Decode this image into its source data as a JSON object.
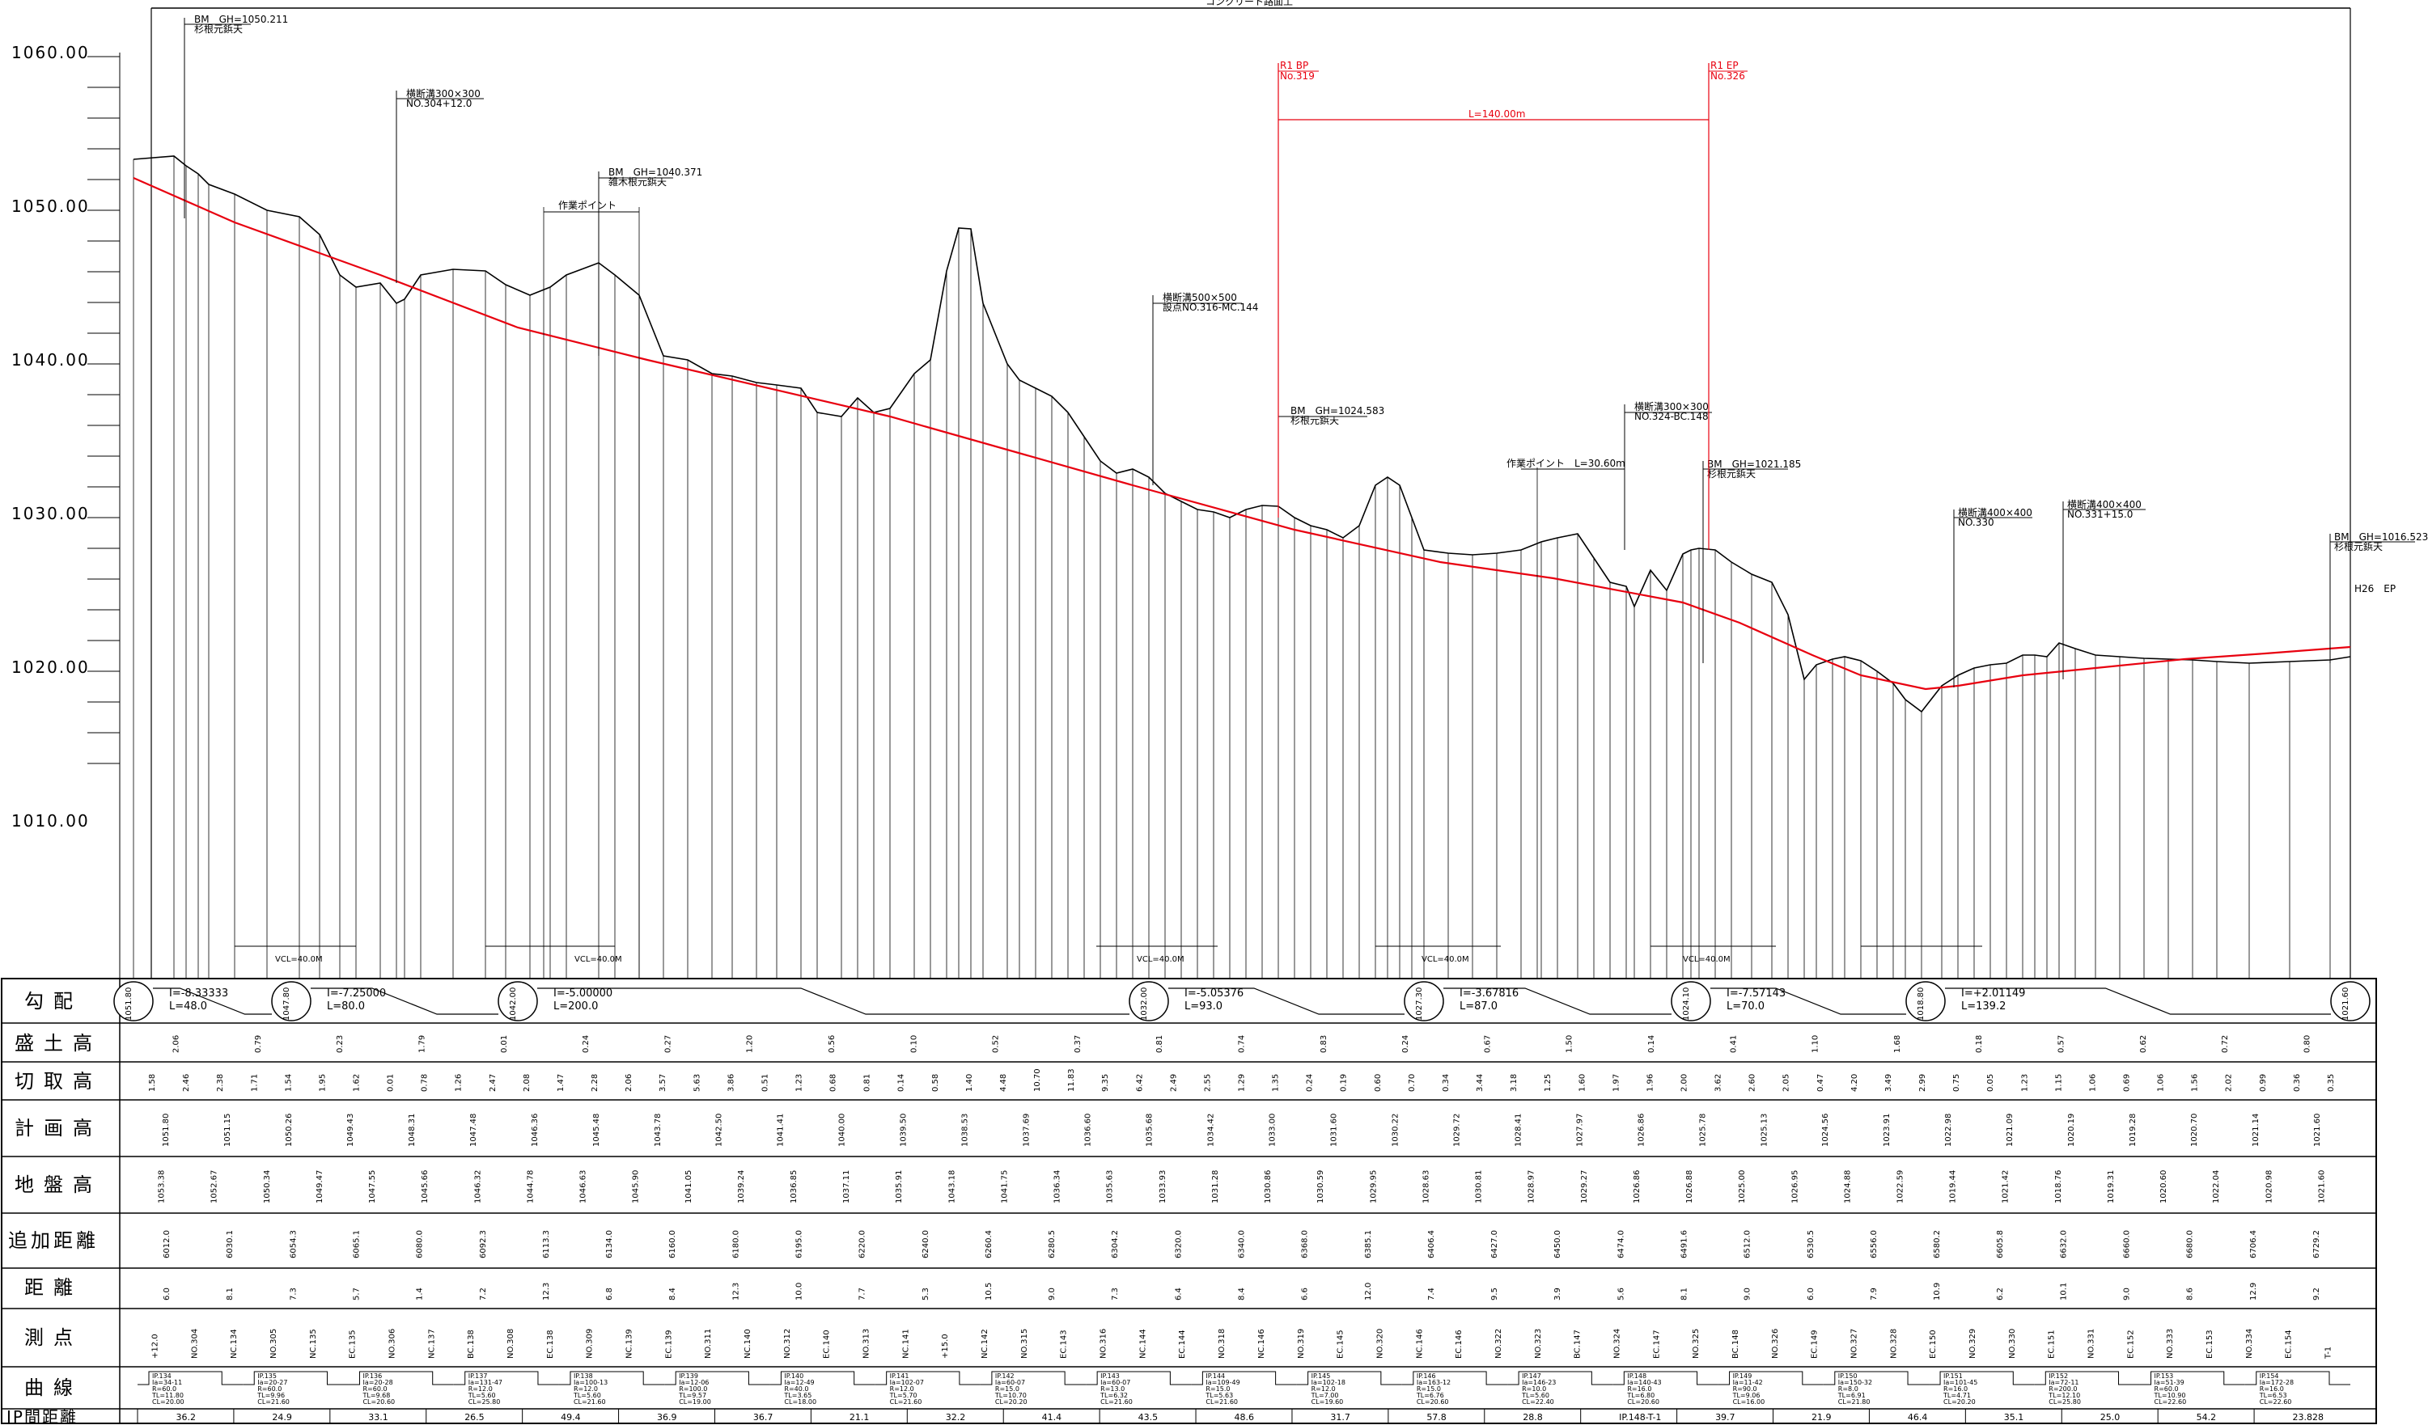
{
  "title_top": "コンクリート路面工",
  "elevations": [
    "1060.00",
    "1050.00",
    "1040.00",
    "1030.00",
    "1020.00",
    "1010.00"
  ],
  "row_labels": [
    "勾配",
    "盛土高",
    "切取高",
    "計画高",
    "地盤高",
    "追加距離",
    "距離",
    "測点",
    "曲線",
    "IP間距離"
  ],
  "annotations": [
    {
      "line1": "BM　GH=1050.211",
      "line2": "杉根元鋲天"
    },
    {
      "line1": "横断溝300×300",
      "line2": "NO.304+12.0"
    },
    {
      "line1": "BM　GH=1040.371",
      "line2": "雑木根元鋲天"
    },
    {
      "line1": "作業ポイント",
      "line2": ""
    },
    {
      "line1": "横断溝500×500",
      "line2": "設点NO.316-MC.144"
    },
    {
      "line1": "BM　GH=1024.583",
      "line2": "杉根元鋲天"
    },
    {
      "line1": "横断溝300×300",
      "line2": "NO.324-BC.148"
    },
    {
      "line1": "作業ポイント　L=30.60m",
      "line2": ""
    },
    {
      "line1": "BM　GH=1021.185",
      "line2": "杉根元鋲天"
    },
    {
      "line1": "横断溝400×400",
      "line2": "NO.330"
    },
    {
      "line1": "横断溝400×400",
      "line2": "NO.331+15.0"
    },
    {
      "line1": "BM　GH=1016.523",
      "line2": "杉根元鋲天"
    },
    {
      "line1": "H26　EP",
      "line2": ""
    }
  ],
  "red_annotations": [
    {
      "line1": "R1 BP",
      "line2": "No.319"
    },
    {
      "line1": "R1 EP",
      "line2": "No.326"
    },
    {
      "line1": "L=140.00m",
      "line2": ""
    }
  ],
  "vcl_labels": [
    "VCL=40.0M",
    "VCL=40.0M",
    "VCL=40.0M",
    "VCL=40.0M",
    "VCL=40.0M"
  ],
  "grades": [
    {
      "i": "I=-8.33333",
      "l": "L=48.0"
    },
    {
      "i": "I=-7.25000",
      "l": "L=80.0"
    },
    {
      "i": "I=-5.00000",
      "l": "L=200.0"
    },
    {
      "i": "I=-5.05376",
      "l": "L=93.0"
    },
    {
      "i": "I=-3.67816",
      "l": "L=87.0"
    },
    {
      "i": "I=-7.57143",
      "l": "L=70.0"
    },
    {
      "i": "I=+2.01149",
      "l": "L=139.2"
    }
  ],
  "grade_circles": [
    "1051.80",
    "1047.80",
    "1042.00",
    "1032.00",
    "1027.30",
    "1024.10",
    "1018.80",
    "1021.60"
  ],
  "fill_samples": [
    "2.06",
    "0.79",
    "0.23",
    "1.79",
    "0.01",
    "0.24",
    "0.27",
    "1.20",
    "0.56",
    "0.10",
    "0.52",
    "0.37",
    "0.81",
    "0.74",
    "0.83",
    "0.24",
    "0.67",
    "1.50",
    "0.14",
    "0.41",
    "1.10",
    "1.68",
    "0.18",
    "0.57",
    "0.62",
    "0.72",
    "0.80"
  ],
  "cut_samples": [
    "1.58",
    "2.46",
    "2.38",
    "1.71",
    "1.54",
    "1.95",
    "1.62",
    "0.01",
    "0.78",
    "1.26",
    "2.47",
    "2.08",
    "1.47",
    "2.28",
    "2.06",
    "3.57",
    "5.63",
    "3.86",
    "0.51",
    "1.23",
    "0.68",
    "0.81",
    "0.14",
    "0.58",
    "1.40",
    "4.48",
    "10.70",
    "11.83",
    "9.35",
    "6.42",
    "2.49",
    "2.55",
    "1.29",
    "1.35",
    "0.24",
    "0.19",
    "0.60",
    "0.70",
    "0.34",
    "3.44",
    "3.18",
    "1.25",
    "1.60",
    "1.97",
    "1.96",
    "2.00",
    "3.62",
    "2.60",
    "2.05",
    "0.47",
    "4.20",
    "3.49",
    "2.99",
    "0.75",
    "0.05",
    "1.23",
    "1.15",
    "1.06",
    "0.69",
    "1.06",
    "1.56",
    "2.02",
    "0.99",
    "0.36",
    "0.35"
  ],
  "plan_samples": [
    "1051.80",
    "1051.15",
    "1050.26",
    "1049.43",
    "1048.31",
    "1047.48",
    "1046.36",
    "1045.48",
    "1043.78",
    "1042.50",
    "1041.41",
    "1040.00",
    "1039.50",
    "1038.53",
    "1037.69",
    "1036.60",
    "1035.68",
    "1034.42",
    "1033.00",
    "1031.60",
    "1030.22",
    "1029.72",
    "1028.41",
    "1027.97",
    "1026.86",
    "1025.78",
    "1025.13",
    "1024.56",
    "1023.91",
    "1022.98",
    "1021.09",
    "1020.19",
    "1019.28",
    "1020.70",
    "1021.14",
    "1021.60"
  ],
  "ground_samples": [
    "1053.38",
    "1052.67",
    "1050.34",
    "1049.47",
    "1047.55",
    "1045.66",
    "1046.32",
    "1044.78",
    "1046.63",
    "1045.90",
    "1041.05",
    "1039.24",
    "1036.85",
    "1037.11",
    "1035.91",
    "1043.18",
    "1041.75",
    "1036.34",
    "1035.63",
    "1033.93",
    "1031.28",
    "1030.86",
    "1030.59",
    "1029.95",
    "1028.63",
    "1030.81",
    "1028.97",
    "1029.27",
    "1026.86",
    "1026.88",
    "1025.00",
    "1026.95",
    "1024.88",
    "1022.59",
    "1019.44",
    "1021.42",
    "1018.76",
    "1019.31",
    "1020.60",
    "1022.04",
    "1020.98",
    "1021.60"
  ],
  "cum_samples": [
    "6012.0",
    "6030.1",
    "6054.3",
    "6065.1",
    "6080.0",
    "6092.3",
    "6113.3",
    "6134.0",
    "6160.0",
    "6180.0",
    "6195.0",
    "6220.0",
    "6240.0",
    "6260.4",
    "6280.5",
    "6304.2",
    "6320.0",
    "6340.0",
    "6368.0",
    "6385.1",
    "6406.4",
    "6427.0",
    "6450.0",
    "6474.0",
    "6491.6",
    "6512.0",
    "6530.5",
    "6556.0",
    "6580.2",
    "6605.8",
    "6632.0",
    "6660.0",
    "6680.0",
    "6706.4",
    "6729.2"
  ],
  "dist_samples": [
    "6.0",
    "8.1",
    "7.3",
    "5.7",
    "1.4",
    "7.2",
    "12.3",
    "6.8",
    "8.4",
    "12.3",
    "10.0",
    "7.7",
    "5.3",
    "10.5",
    "9.0",
    "7.3",
    "6.4",
    "8.4",
    "6.6",
    "12.0",
    "7.4",
    "9.5",
    "3.9",
    "5.6",
    "8.1",
    "9.0",
    "6.0",
    "7.9",
    "10.9",
    "6.2",
    "10.1",
    "9.0",
    "8.6",
    "12.9",
    "9.2"
  ],
  "station_samples": [
    "+12.0",
    "NO.304",
    "NC.134",
    "NO.305",
    "NC.135",
    "EC.135",
    "NO.306",
    "NC.137",
    "BC.138",
    "NO.308",
    "EC.138",
    "NO.309",
    "NC.139",
    "EC.139",
    "NO.311",
    "NC.140",
    "NO.312",
    "EC.140",
    "NO.313",
    "NC.141",
    "+15.0",
    "NC.142",
    "NO.315",
    "EC.143",
    "NO.316",
    "NC.144",
    "EC.144",
    "NO.318",
    "NC.146",
    "NO.319",
    "EC.145",
    "NO.320",
    "NC.146",
    "EC.146",
    "NO.322",
    "NO.323",
    "BC.147",
    "NO.324",
    "EC.147",
    "NO.325",
    "BC.148",
    "NO.326",
    "EC.149",
    "NO.327",
    "NO.328",
    "EC.150",
    "NO.329",
    "NO.330",
    "EC.151",
    "NO.331",
    "EC.152",
    "NO.333",
    "EC.153",
    "NO.334",
    "EC.154",
    "T-1"
  ],
  "ip_distances": [
    "36.2",
    "24.9",
    "33.1",
    "26.5",
    "49.4",
    "36.9",
    "36.7",
    "21.1",
    "32.2",
    "41.4",
    "43.5",
    "48.6",
    "31.7",
    "57.8",
    "28.8",
    "IP.148-T-1",
    "39.7",
    "21.9",
    "46.4",
    "35.1",
    "25.0",
    "54.2",
    "23.828"
  ],
  "curves": [
    {
      "ip": "IP.134",
      "a": "Ia=34-11",
      "b": "R=60.0",
      "c": "TL=11.80",
      "d": "CL=20.00"
    },
    {
      "ip": "IP.135",
      "a": "Ia=20-27",
      "b": "R=60.0",
      "c": "TL=9.96",
      "d": "CL=21.60"
    },
    {
      "ip": "IP.136",
      "a": "Ia=20-28",
      "b": "R=60.0",
      "c": "TL=9.68",
      "d": "CL=20.60"
    },
    {
      "ip": "IP.137",
      "a": "Ia=131-47",
      "b": "R=12.0",
      "c": "TL=5.60",
      "d": "CL=25.80"
    },
    {
      "ip": "IP.138",
      "a": "Ia=100-13",
      "b": "R=12.0",
      "c": "TL=5.60",
      "d": "CL=21.60"
    },
    {
      "ip": "IP.139",
      "a": "Ia=12-06",
      "b": "R=100.0",
      "c": "TL=9.57",
      "d": "CL=19.00"
    },
    {
      "ip": "IP.140",
      "a": "Ia=12-49",
      "b": "R=40.0",
      "c": "TL=3.65",
      "d": "CL=18.00"
    },
    {
      "ip": "IP.141",
      "a": "Ia=102-07",
      "b": "R=12.0",
      "c": "TL=5.70",
      "d": "CL=21.60"
    },
    {
      "ip": "IP.142",
      "a": "Ia=60-07",
      "b": "R=15.0",
      "c": "TL=10.70",
      "d": "CL=20.20"
    },
    {
      "ip": "IP.143",
      "a": "Ia=60-07",
      "b": "R=13.0",
      "c": "TL=6.32",
      "d": "CL=21.60"
    },
    {
      "ip": "IP.144",
      "a": "Ia=109-49",
      "b": "R=15.0",
      "c": "TL=5.63",
      "d": "CL=21.60"
    },
    {
      "ip": "IP.145",
      "a": "Ia=102-18",
      "b": "R=12.0",
      "c": "TL=7.00",
      "d": "CL=19.60"
    },
    {
      "ip": "IP.146",
      "a": "Ia=163-12",
      "b": "R=15.0",
      "c": "TL=6.76",
      "d": "CL=20.60"
    },
    {
      "ip": "IP.147",
      "a": "Ia=146-23",
      "b": "R=10.0",
      "c": "TL=5.60",
      "d": "CL=22.40"
    },
    {
      "ip": "IP.148",
      "a": "Ia=140-43",
      "b": "R=16.0",
      "c": "TL=6.80",
      "d": "CL=20.60"
    },
    {
      "ip": "IP.149",
      "a": "Ia=11-42",
      "b": "R=90.0",
      "c": "TL=9.06",
      "d": "CL=16.00"
    },
    {
      "ip": "IP.150",
      "a": "Ia=150-32",
      "b": "R=8.0",
      "c": "TL=6.91",
      "d": "CL=21.80"
    },
    {
      "ip": "IP.151",
      "a": "Ia=101-45",
      "b": "R=16.0",
      "c": "TL=4.71",
      "d": "CL=20.20"
    },
    {
      "ip": "IP.152",
      "a": "Ia=72-11",
      "b": "R=200.0",
      "c": "TL=12.10",
      "d": "CL=25.80"
    },
    {
      "ip": "IP.153",
      "a": "Ia=51-39",
      "b": "R=60.0",
      "c": "TL=10.90",
      "d": "CL=22.60"
    },
    {
      "ip": "IP.154",
      "a": "Ia=172-28",
      "b": "R=16.0",
      "c": "TL=6.53",
      "d": "CL=22.60"
    }
  ],
  "colors": {
    "line": "#000000",
    "plan": "#e8000f",
    "background": "#ffffff"
  }
}
